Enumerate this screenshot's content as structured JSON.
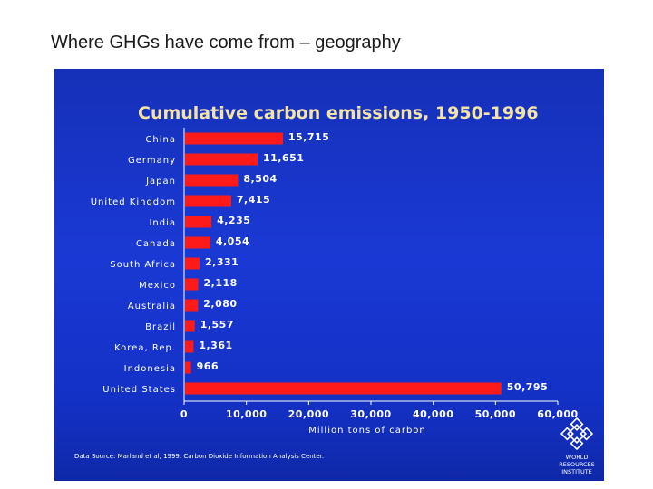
{
  "slide_title": "Where GHGs have come from – geography",
  "chart_data": {
    "type": "bar",
    "orientation": "horizontal",
    "title": "Cumulative carbon emissions, 1950-1996",
    "xlabel": "Million tons of carbon",
    "ylabel": "",
    "xlim": [
      0,
      60000
    ],
    "x_ticks": [
      0,
      10000,
      20000,
      30000,
      40000,
      50000,
      60000
    ],
    "x_tick_labels": [
      "0",
      "10,000",
      "20,000",
      "30,000",
      "40,000",
      "50,000",
      "60,000"
    ],
    "categories": [
      "China",
      "Germany",
      "Japan",
      "United Kingdom",
      "India",
      "Canada",
      "South Africa",
      "Mexico",
      "Australia",
      "Brazil",
      "Korea, Rep.",
      "Indonesia",
      "United States"
    ],
    "values": [
      15715,
      11651,
      8504,
      7415,
      4235,
      4054,
      2331,
      2118,
      2080,
      1557,
      1361,
      966,
      50795
    ],
    "value_labels": [
      "15,715",
      "11,651",
      "8,504",
      "7,415",
      "4,235",
      "4,054",
      "2,331",
      "2,118",
      "2,080",
      "1,557",
      "1,361",
      "966",
      "50,795"
    ],
    "bar_color": "#ff1a1a",
    "background_color": "#1a39d4",
    "title_color": "#f2e3a8",
    "grid": false,
    "source": "Data Source: Marland et al, 1999. Carbon Dioxide Information Analysis Center."
  },
  "logo": {
    "icon": "world-resources-institute-logo",
    "lines": [
      "WORLD",
      "RESOURCES",
      "INSTITUTE"
    ]
  }
}
